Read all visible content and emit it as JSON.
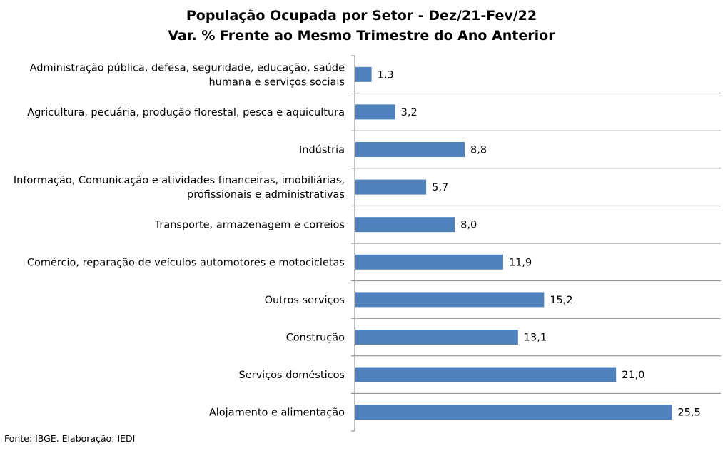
{
  "chart_data": {
    "type": "bar",
    "orientation": "horizontal",
    "title_line1": "População Ocupada por Setor - Dez/21-Fev/22",
    "title_line2": "Var. % Frente ao Mesmo Trimestre do Ano Anterior",
    "categories": [
      [
        "Administração pública, defesa, seguridade, educação, saúde",
        "humana e serviços sociais"
      ],
      [
        "Agricultura, pecuária, produção florestal, pesca e aquicultura"
      ],
      [
        "Indústria"
      ],
      [
        "Informação, Comunicação e atividades financeiras, imobiliárias,",
        "profissionais e administrativas"
      ],
      [
        "Transporte, armazenagem e correios"
      ],
      [
        "Comércio, reparação de veículos automotores e motocicletas"
      ],
      [
        "Outros serviços"
      ],
      [
        "Construção"
      ],
      [
        "Serviços domésticos"
      ],
      [
        "Alojamento e alimentação"
      ]
    ],
    "values": [
      1.3,
      3.2,
      8.8,
      5.7,
      8.0,
      11.9,
      15.2,
      13.1,
      21.0,
      25.5
    ],
    "value_labels": [
      "1,3",
      "3,2",
      "8,8",
      "5,7",
      "8,0",
      "11,9",
      "15,2",
      "13,1",
      "21,0",
      "25,5"
    ],
    "xlim": [
      0,
      29.5
    ],
    "bar_color": "#4f81bd",
    "grid": "horizontal separators between categories",
    "legend": "none"
  },
  "footer": {
    "source": "Fonte: IBGE. Elaboração: IEDI"
  }
}
